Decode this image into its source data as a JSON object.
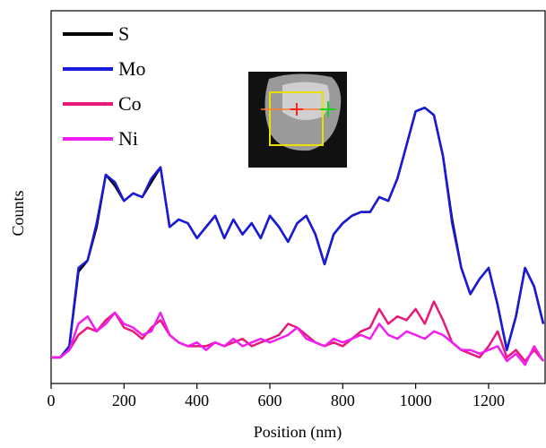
{
  "chart_data": {
    "type": "line",
    "x_label": "Position (nm)",
    "y_label": "Counts",
    "x": [
      0,
      25,
      50,
      75,
      100,
      125,
      150,
      175,
      200,
      225,
      250,
      275,
      300,
      325,
      350,
      375,
      400,
      425,
      450,
      475,
      500,
      525,
      550,
      575,
      600,
      625,
      650,
      675,
      700,
      725,
      750,
      775,
      800,
      825,
      850,
      875,
      900,
      925,
      950,
      975,
      1000,
      1025,
      1050,
      1075,
      1100,
      1125,
      1150,
      1175,
      1200,
      1225,
      1250,
      1275,
      1300,
      1325,
      1350
    ],
    "xlim": [
      0,
      1355
    ],
    "xticks": [
      0,
      200,
      400,
      600,
      800,
      1000,
      1200
    ],
    "ylim": [
      0,
      100
    ],
    "legend": "top-left",
    "series": [
      {
        "name": "S",
        "color": "#000000",
        "values": [
          7,
          7,
          10,
          30,
          33,
          42,
          56,
          53,
          49,
          51,
          50,
          54,
          58,
          42,
          44,
          43,
          39,
          42,
          45,
          39,
          44,
          40,
          43,
          39,
          45,
          42,
          38,
          43,
          45,
          40,
          32,
          40,
          43,
          45,
          46,
          46,
          50,
          49,
          55,
          64,
          73,
          74,
          72,
          61,
          44,
          31,
          24,
          28,
          31,
          21,
          9,
          18,
          31,
          26,
          16
        ]
      },
      {
        "name": "Mo",
        "color": "#1a1adc",
        "values": [
          7,
          7,
          10,
          31,
          33,
          43,
          56,
          54,
          49,
          51,
          50,
          55,
          58,
          42,
          44,
          43,
          39,
          42,
          45,
          39,
          44,
          40,
          43,
          39,
          45,
          42,
          38,
          43,
          45,
          40,
          32,
          40,
          43,
          45,
          46,
          46,
          50,
          49,
          55,
          64,
          73,
          74,
          72,
          61,
          43,
          31,
          24,
          28,
          31,
          21,
          9,
          18,
          31,
          26,
          16
        ]
      },
      {
        "name": "Co",
        "color": "#e8197a",
        "values": [
          7,
          7,
          9,
          13,
          15,
          14,
          17,
          19,
          15,
          14,
          12,
          15,
          17,
          13,
          11,
          10,
          10,
          10,
          11,
          10,
          11,
          12,
          10,
          11,
          12,
          13,
          16,
          15,
          13,
          11,
          10,
          11,
          10,
          12,
          14,
          15,
          20,
          16,
          18,
          17,
          20,
          16,
          22,
          17,
          11,
          9,
          8,
          7,
          10,
          14,
          7,
          9,
          6,
          9,
          6
        ]
      },
      {
        "name": "Ni",
        "color": "#f01ef0",
        "values": [
          7,
          7,
          9,
          16,
          18,
          14,
          16,
          19,
          16,
          15,
          13,
          14,
          19,
          13,
          11,
          10,
          11,
          9,
          11,
          10,
          12,
          10,
          11,
          12,
          11,
          12,
          13,
          15,
          12,
          11,
          10,
          12,
          11,
          12,
          13,
          12,
          16,
          13,
          12,
          14,
          13,
          12,
          14,
          13,
          11,
          9,
          9,
          8,
          9,
          10,
          6,
          8,
          5,
          10,
          6
        ]
      }
    ]
  }
}
